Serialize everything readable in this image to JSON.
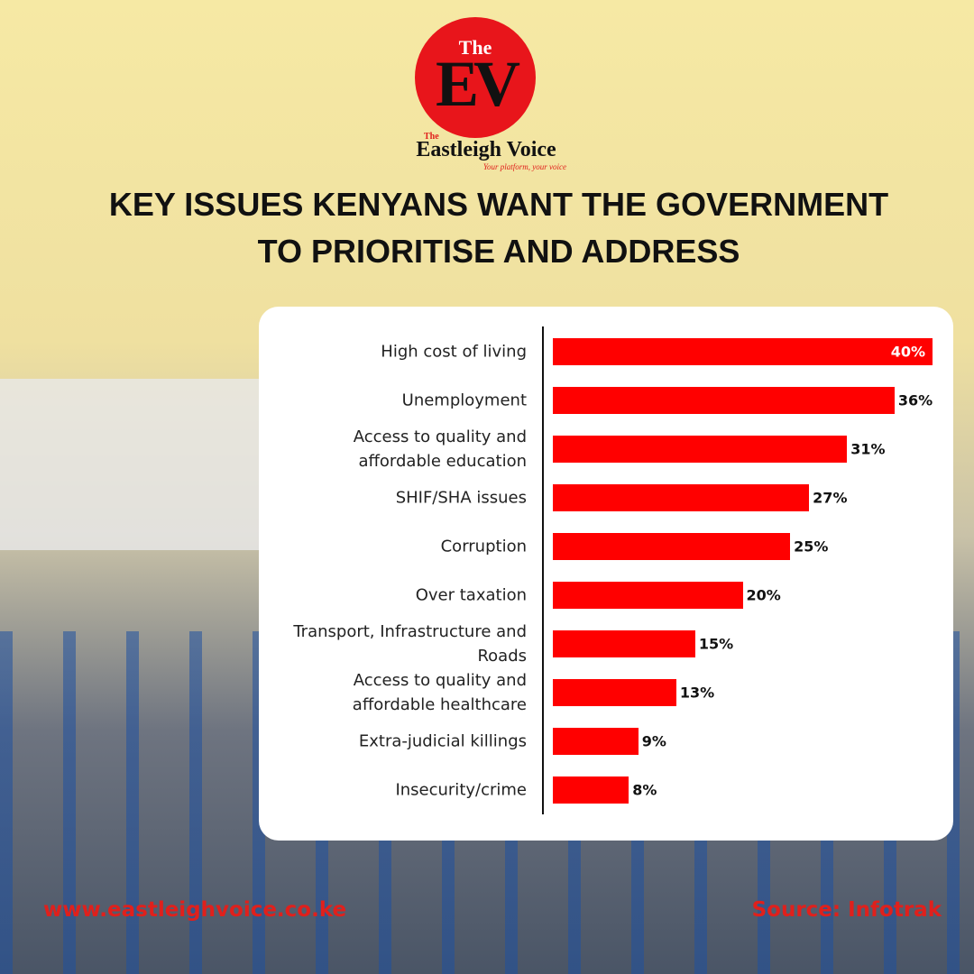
{
  "brand": {
    "logo_small": "The",
    "logo_big": "EV",
    "name_small": "The",
    "name": "Eastleigh Voice",
    "tagline": "Your platform, your voice"
  },
  "chart_data": {
    "type": "bar",
    "orientation": "horizontal",
    "title": [
      "KEY ISSUES KENYANS WANT THE GOVERNMENT",
      "TO PRIORITISE AND ADDRESS"
    ],
    "categories": [
      "High cost of living",
      "Unemployment",
      "Access to quality and affordable education",
      "SHIF/SHA issues",
      "Corruption",
      "Over taxation",
      "Transport, Infrastructure and Roads",
      "Access to quality and affordable healthcare",
      "Extra-judicial killings",
      "Insecurity/crime"
    ],
    "values": [
      40,
      36,
      31,
      27,
      25,
      20,
      15,
      13,
      9,
      8
    ],
    "value_labels": [
      "40%",
      "36%",
      "31%",
      "27%",
      "25%",
      "20%",
      "15%",
      "13%",
      "9%",
      "8%"
    ],
    "color": "#ff0000"
  },
  "footer": {
    "website": "www.eastleighvoice.co.ke",
    "source": "Source: Infotrak"
  }
}
